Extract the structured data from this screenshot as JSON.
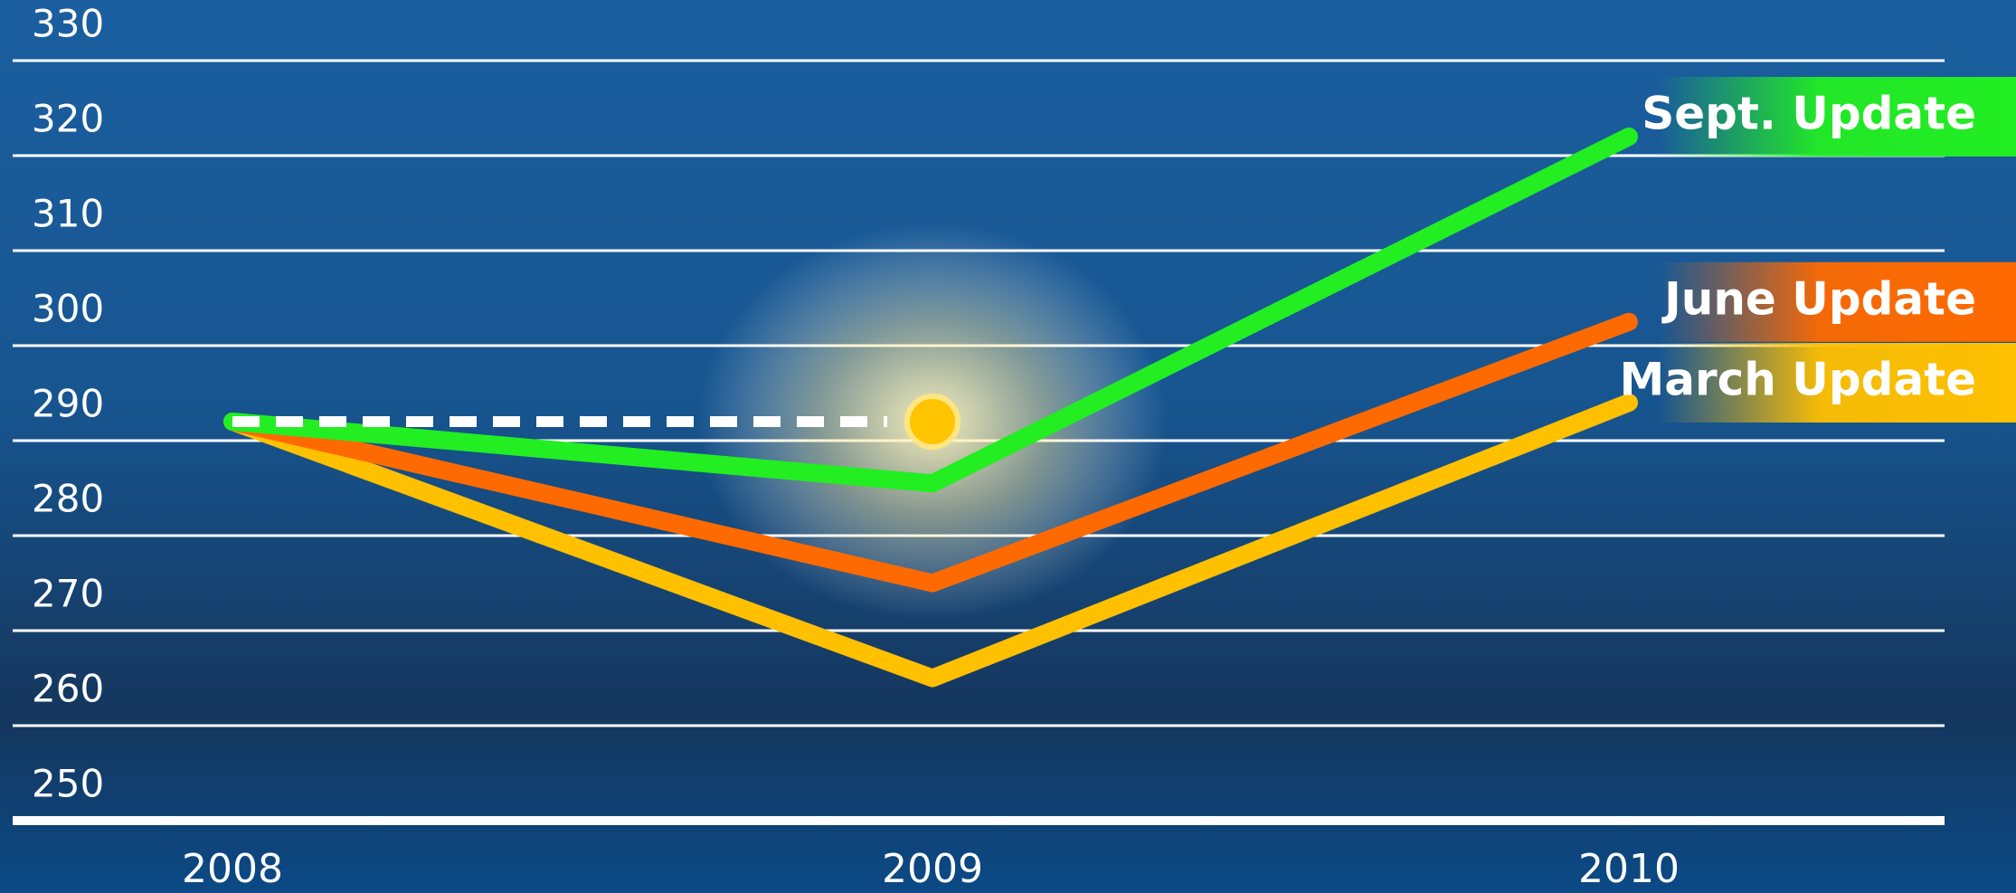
{
  "chart_data": {
    "type": "line",
    "categories": [
      "2008",
      "2009",
      "2010"
    ],
    "series": [
      {
        "name": "Sept. Update",
        "color": "#22ee22",
        "values": [
          292,
          285.5,
          322
        ]
      },
      {
        "name": "June Update",
        "color": "#ff6a00",
        "values": [
          292,
          275,
          302.5
        ]
      },
      {
        "name": "March Update",
        "color": "#ffc000",
        "values": [
          292,
          265,
          294
        ]
      }
    ],
    "reference_line": {
      "values": [
        292,
        292
      ],
      "color": "#ffffff"
    },
    "ylim": [
      250,
      332
    ],
    "yticks": [
      250,
      260,
      270,
      280,
      290,
      300,
      310,
      320,
      330
    ],
    "grid": true
  }
}
